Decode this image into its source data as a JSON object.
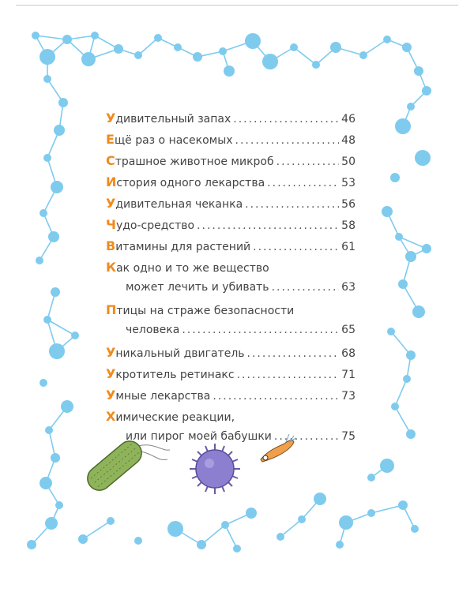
{
  "colors": {
    "accent": "#f08a1c",
    "molecule": "#7ecbee",
    "text": "#444444"
  },
  "toc": [
    {
      "cap": "У",
      "rest": "дивительный запах",
      "page": "46"
    },
    {
      "cap": "Е",
      "rest": "щё раз о насекомых",
      "page": "48"
    },
    {
      "cap": "С",
      "rest": "трашное животное микроб",
      "page": "50"
    },
    {
      "cap": "И",
      "rest": "стория одного лекарства",
      "page": "53"
    },
    {
      "cap": "У",
      "rest": "дивительная чеканка",
      "page": "56"
    },
    {
      "cap": "Ч",
      "rest": "удо-средство",
      "page": "58"
    },
    {
      "cap": "В",
      "rest": "итамины для растений",
      "page": "61"
    },
    {
      "cap": "К",
      "rest": "ак одно и то же вещество",
      "cont": "может лечить и убивать",
      "page": "63"
    },
    {
      "cap": "П",
      "rest": "тицы на страже безопасности",
      "cont": "человека",
      "page": "65"
    },
    {
      "cap": "У",
      "rest": "никальный двигатель",
      "page": "68"
    },
    {
      "cap": "У",
      "rest": "кротитель ретинакс",
      "page": "71"
    },
    {
      "cap": "У",
      "rest": "мные лекарства",
      "page": "73"
    },
    {
      "cap": "Х",
      "rest": "имические реакции,",
      "cont": "или пирог моей бабушки",
      "page": "75"
    }
  ],
  "illustrations": [
    "bacterium",
    "virus",
    "microorganism"
  ]
}
